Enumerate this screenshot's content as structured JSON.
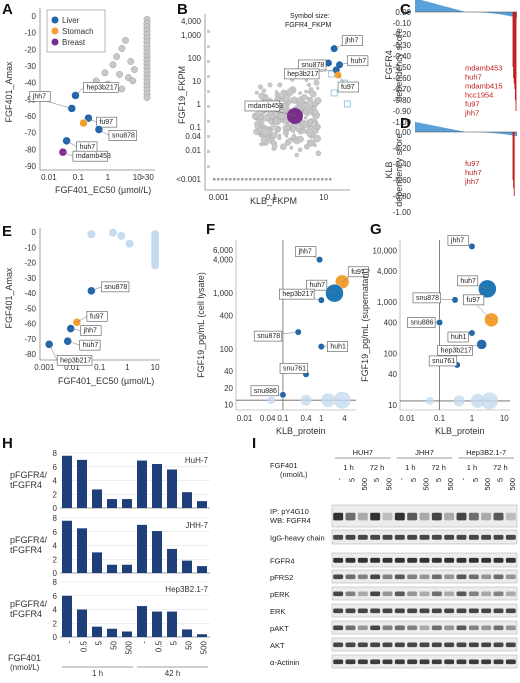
{
  "panels": {
    "A": {
      "letter": "A",
      "ylabel": "FGF401_Amax",
      "xlabel": "FGF401_EC50 (µmol/L)",
      "xticks": [
        "0.01",
        "0.1",
        "1",
        "10",
        ">30"
      ],
      "yticks": [
        "0",
        "-10",
        "-20",
        "-30",
        "-40",
        "-50",
        "-60",
        "-70",
        "-80",
        "-90"
      ],
      "legend": [
        {
          "name": "Liver",
          "color": "#2166ac"
        },
        {
          "name": "Stomach",
          "color": "#f4a030"
        },
        {
          "name": "Breast",
          "color": "#7b2d8b"
        }
      ],
      "labels": [
        "jhh7",
        "hep3b217",
        "fu97",
        "snu878",
        "huh7",
        "mdamb453"
      ]
    },
    "B": {
      "letter": "B",
      "ylabel": "FGF19_FKPM",
      "xlabel": "KLB_FKPM",
      "note": "Symbol size: FGFR4_FKPM",
      "xticks": [
        "0.001",
        "0.1",
        "10"
      ],
      "yticks": [
        "4,000",
        "1,000",
        "100",
        "10",
        "1",
        "0.1",
        "0.04",
        "0.01",
        "<0.001"
      ],
      "labels": [
        "jhh7",
        "snu878",
        "hep3b217",
        "huh7",
        "fu97",
        "mdamb453"
      ]
    },
    "C": {
      "letter": "C",
      "ylabel": "FGFR4 dependency score",
      "yticks": [
        "0.00",
        "-0.10",
        "-0.20",
        "-0.30",
        "-0.40",
        "-0.50",
        "-0.60",
        "-0.70",
        "-0.80",
        "-0.90",
        "-1.00"
      ],
      "labels": [
        "mdamb453",
        "huh7",
        "mdamb415",
        "hcc1954",
        "fu97",
        "jhh7"
      ]
    },
    "D": {
      "letter": "D",
      "ylabel": "KLB dependency score",
      "yticks": [
        "0.00",
        "-0.20",
        "-0.40",
        "-0.60",
        "-0.80",
        "-1.00"
      ],
      "labels": [
        "fu97",
        "huh7",
        "jhh7"
      ]
    },
    "E": {
      "letter": "E",
      "ylabel": "FGF401_Amax",
      "xlabel": "FGF401_EC50 (µmol/L)",
      "xticks": [
        "0.001",
        "0.01",
        "0.1",
        "1",
        "10"
      ],
      "yticks": [
        "0",
        "-10",
        "-20",
        "-30",
        "-40",
        "-50",
        "-60",
        "-70",
        "-80"
      ],
      "labels": [
        "snu878",
        "fu97",
        "jhh7",
        "huh7",
        "hep3b217"
      ]
    },
    "F": {
      "letter": "F",
      "ylabel": "FGF19_pg/mL (cell lysate)",
      "xlabel": "KLB_protein",
      "xticks": [
        "0.01",
        "0.04",
        "0.1",
        "0.4",
        "1",
        "4"
      ],
      "yticks": [
        "6,000",
        "4,000",
        "1,000",
        "400",
        "100",
        "40",
        "20",
        "10"
      ],
      "labels": [
        "jhh7",
        "fu97",
        "huh7",
        "hep3b217",
        "snu878",
        "huh1",
        "snu761",
        "snu886"
      ]
    },
    "G": {
      "letter": "G",
      "ylabel": "FGF19_pg/mL (supernatant)",
      "xlabel": "KLB_protein",
      "xticks": [
        "0.01",
        "0.1",
        "1",
        "10"
      ],
      "yticks": [
        "10,000",
        "4,000",
        "1,000",
        "400",
        "100",
        "40",
        "10"
      ],
      "labels": [
        "jhh7",
        "huh7",
        "snu878",
        "fu97",
        "snu886",
        "huh1",
        "hep3b217",
        "snu761"
      ]
    },
    "H": {
      "letter": "H",
      "ylabel": "pFGFR4/ tFGFR4",
      "subplots": [
        "HuH-7",
        "JHH-7",
        "Hep3B2.1-7"
      ],
      "yticks": [
        "8",
        "6",
        "4",
        "2",
        "0"
      ],
      "doses": [
        "-",
        "0.5",
        "5",
        "50",
        "500",
        "-",
        "0.5",
        "5",
        "50",
        "500"
      ],
      "dose_label": "FGF401 (nmol/L)",
      "times": [
        "1 h",
        "42 h"
      ]
    },
    "I": {
      "letter": "I",
      "cell_lines": [
        "HUH7",
        "JHH7",
        "Hep3B2.1-7"
      ],
      "fgf401": "FGF401",
      "unit": "(nmol/L)",
      "times": [
        "1 h",
        "72 h",
        "1 h",
        "72 h",
        "1 h",
        "72 h"
      ],
      "doses": [
        "-",
        "5",
        "500",
        "5",
        "500",
        "-",
        "5",
        "500",
        "5",
        "500",
        "-",
        "5",
        "500",
        "5",
        "500"
      ],
      "ip": "IP: pY4G10",
      "wb": "WB: FGFR4",
      "rows": [
        "IgG-heavy chain",
        "FGFR4",
        "pFRS2",
        "pERK",
        "ERK",
        "pAKT",
        "AKT",
        "α-Actinin"
      ]
    }
  },
  "chart_data": [
    {
      "panel": "A",
      "type": "scatter",
      "title": "",
      "xlabel": "FGF401_EC50 (µmol/L)",
      "ylabel": "FGF401_Amax",
      "xscale": "log",
      "ylim": [
        -95,
        5
      ],
      "series": [
        {
          "name": "Liver",
          "points": [
            {
              "label": "jhh7",
              "x": 0.06,
              "y": -57
            },
            {
              "label": "hep3b217",
              "x": 0.08,
              "y": -49
            },
            {
              "label": "fu97",
              "x": 0.22,
              "y": -63
            },
            {
              "label": "snu878",
              "x": 0.5,
              "y": -70
            },
            {
              "label": "huh7",
              "x": 0.04,
              "y": -77
            }
          ]
        },
        {
          "name": "Stomach",
          "points": [
            {
              "label": "fu97",
              "x": 0.15,
              "y": -66
            }
          ]
        },
        {
          "name": "Breast",
          "points": [
            {
              "label": "mdamb453",
              "x": 0.03,
              "y": -84
            }
          ]
        }
      ]
    },
    {
      "panel": "B",
      "type": "scatter",
      "xlabel": "KLB_FKPM",
      "ylabel": "FGF19_FKPM",
      "xscale": "log",
      "yscale": "log",
      "points": [
        {
          "label": "jhh7",
          "x": 25,
          "y": 250
        },
        {
          "label": "snu878",
          "x": 15,
          "y": 60
        },
        {
          "label": "hep3b217",
          "x": 30,
          "y": 30
        },
        {
          "label": "huh7",
          "x": 40,
          "y": 50
        },
        {
          "label": "fu97",
          "x": 35,
          "y": 18
        },
        {
          "label": "mdamb453",
          "x": 0.8,
          "y": 0.3
        }
      ]
    },
    {
      "panel": "C",
      "type": "bar",
      "ylabel": "FGFR4 dependency score",
      "ylim": [
        -1.0,
        0.05
      ],
      "highlighted": [
        {
          "label": "mdamb453",
          "y": -0.5
        },
        {
          "label": "huh7",
          "y": -0.6
        },
        {
          "label": "mdamb415",
          "y": -0.65
        },
        {
          "label": "hcc1954",
          "y": -0.7
        },
        {
          "label": "fu97",
          "y": -0.8
        },
        {
          "label": "jhh7",
          "y": -0.9
        }
      ]
    },
    {
      "panel": "D",
      "type": "bar",
      "ylabel": "KLB dependency score",
      "ylim": [
        -1.0,
        0.05
      ],
      "highlighted": [
        {
          "label": "fu97",
          "y": -0.6
        },
        {
          "label": "huh7",
          "y": -0.7
        },
        {
          "label": "jhh7",
          "y": -0.8
        }
      ]
    },
    {
      "panel": "E",
      "type": "scatter",
      "xlabel": "FGF401_EC50 (µmol/L)",
      "ylabel": "FGF401_Amax",
      "xscale": "log",
      "points": [
        {
          "label": "snu878",
          "x": 0.05,
          "y": -38
        },
        {
          "label": "fu97",
          "x": 0.015,
          "y": -58
        },
        {
          "label": "jhh7",
          "x": 0.009,
          "y": -62
        },
        {
          "label": "huh7",
          "x": 0.007,
          "y": -70
        },
        {
          "label": "hep3b217",
          "x": 0.0015,
          "y": -72
        }
      ]
    },
    {
      "panel": "F",
      "type": "scatter",
      "xlabel": "KLB_protein",
      "ylabel": "FGF19_pg/mL (cell lysate)",
      "xscale": "log",
      "yscale": "log",
      "points": [
        {
          "label": "jhh7",
          "x": 0.9,
          "y": 4000
        },
        {
          "label": "fu97",
          "x": 3.5,
          "y": 1600
        },
        {
          "label": "huh7",
          "x": 2.2,
          "y": 1000
        },
        {
          "label": "hep3b217",
          "x": 1.0,
          "y": 750
        },
        {
          "label": "snu878",
          "x": 0.25,
          "y": 200
        },
        {
          "label": "huh1",
          "x": 1.0,
          "y": 110
        },
        {
          "label": "snu761",
          "x": 0.4,
          "y": 35
        },
        {
          "label": "snu886",
          "x": 0.1,
          "y": 15
        }
      ]
    },
    {
      "panel": "G",
      "type": "scatter",
      "xlabel": "KLB_protein",
      "ylabel": "FGF19_pg/mL (supernatant)",
      "xscale": "log",
      "yscale": "log",
      "points": [
        {
          "label": "jhh7",
          "x": 1.0,
          "y": 12000
        },
        {
          "label": "huh7",
          "x": 3,
          "y": 1800
        },
        {
          "label": "snu878",
          "x": 0.3,
          "y": 1100
        },
        {
          "label": "fu97",
          "x": 4,
          "y": 450
        },
        {
          "label": "snu886",
          "x": 0.1,
          "y": 400
        },
        {
          "label": "huh1",
          "x": 1.0,
          "y": 250
        },
        {
          "label": "hep3b217",
          "x": 2,
          "y": 150
        },
        {
          "label": "snu761",
          "x": 0.35,
          "y": 60
        }
      ]
    },
    {
      "panel": "H",
      "type": "bar",
      "ylabel": "pFGFR4/ tFGFR4",
      "categories": [
        "-",
        "0.5",
        "5",
        "50",
        "500",
        "-",
        "0.5",
        "5",
        "50",
        "500"
      ],
      "ylim": [
        0,
        8
      ],
      "series": [
        {
          "name": "HuH-7",
          "values": [
            7.6,
            7.0,
            2.7,
            1.3,
            1.3,
            6.9,
            6.4,
            5.6,
            2.3,
            1.0
          ]
        },
        {
          "name": "JHH-7",
          "values": [
            7.6,
            6.5,
            3.0,
            1.2,
            1.2,
            7.0,
            6.1,
            3.5,
            1.8,
            1.0
          ]
        },
        {
          "name": "Hep3B2.1-7",
          "values": [
            6.0,
            4.0,
            1.5,
            1.2,
            0.8,
            4.5,
            3.7,
            3.7,
            1.1,
            0.4
          ]
        }
      ]
    }
  ]
}
